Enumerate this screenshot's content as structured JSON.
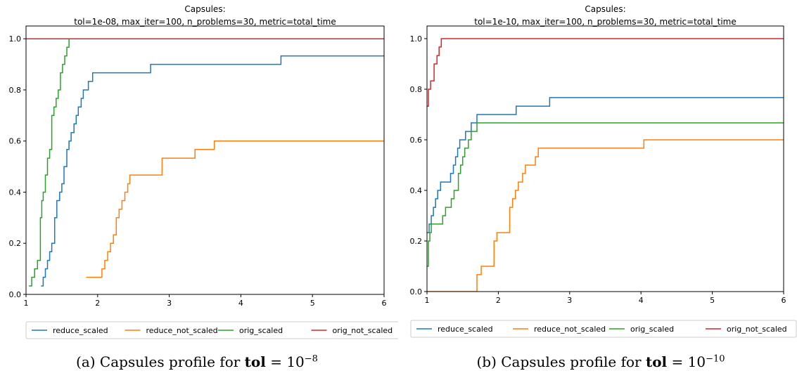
{
  "chart_data": [
    {
      "type": "line",
      "title": "Capsules:\ntol=1e-08, max_iter=100, n_problems=30, metric=total_time",
      "xlabel": "",
      "ylabel": "",
      "xlim": [
        1,
        6
      ],
      "ylim": [
        0,
        1.05
      ],
      "xticks": [
        1,
        2,
        3,
        4,
        5,
        6
      ],
      "yticks": [
        0.0,
        0.2,
        0.4,
        0.6,
        0.8,
        1.0
      ],
      "grid": false,
      "legend_position": "bottom",
      "series": [
        {
          "name": "reduce_scaled",
          "color": "#1f77b4",
          "x": [
            1.21,
            1.24,
            1.27,
            1.3,
            1.33,
            1.36,
            1.4,
            1.43,
            1.47,
            1.5,
            1.53,
            1.57,
            1.6,
            1.63,
            1.67,
            1.7,
            1.73,
            1.77,
            1.8,
            1.83,
            1.87,
            1.9,
            1.93,
            1.97,
            2.74,
            4.56,
            6.0
          ],
          "y": [
            0.033,
            0.067,
            0.1,
            0.133,
            0.167,
            0.2,
            0.3,
            0.367,
            0.4,
            0.433,
            0.5,
            0.567,
            0.6,
            0.633,
            0.667,
            0.7,
            0.733,
            0.767,
            0.8,
            0.8,
            0.833,
            0.833,
            0.867,
            0.867,
            0.9,
            0.933,
            0.933
          ]
        },
        {
          "name": "reduce_not_scaled",
          "color": "#ff7f0e",
          "x": [
            1.84,
            2.06,
            2.1,
            2.14,
            2.18,
            2.22,
            2.26,
            2.3,
            2.34,
            2.38,
            2.42,
            2.45,
            2.48,
            2.9,
            3.36,
            3.63,
            6.0
          ],
          "y": [
            0.067,
            0.1,
            0.133,
            0.167,
            0.2,
            0.233,
            0.3,
            0.333,
            0.367,
            0.4,
            0.433,
            0.467,
            0.467,
            0.533,
            0.567,
            0.6,
            0.6
          ]
        },
        {
          "name": "orig_scaled",
          "color": "#2ca02c",
          "x": [
            1.04,
            1.08,
            1.12,
            1.16,
            1.2,
            1.22,
            1.24,
            1.27,
            1.3,
            1.33,
            1.36,
            1.39,
            1.42,
            1.45,
            1.48,
            1.51,
            1.54,
            1.57,
            1.6,
            6.0
          ],
          "y": [
            0.033,
            0.067,
            0.1,
            0.133,
            0.3,
            0.367,
            0.4,
            0.467,
            0.533,
            0.567,
            0.7,
            0.733,
            0.767,
            0.8,
            0.867,
            0.9,
            0.933,
            0.967,
            1.0,
            1.0
          ]
        },
        {
          "name": "orig_not_scaled",
          "color": "#d62728",
          "x": [
            1,
            6
          ],
          "y": [
            1.0,
            1.0
          ]
        }
      ]
    },
    {
      "type": "line",
      "title": "Capsules:\ntol=1e-10, max_iter=100, n_problems=30, metric=total_time",
      "xlabel": "",
      "ylabel": "",
      "xlim": [
        1,
        6
      ],
      "ylim": [
        0,
        1.05
      ],
      "xticks": [
        1,
        2,
        3,
        4,
        5,
        6
      ],
      "yticks": [
        0.0,
        0.2,
        0.4,
        0.6,
        0.8,
        1.0
      ],
      "grid": false,
      "legend_position": "bottom",
      "series": [
        {
          "name": "reduce_scaled",
          "color": "#1f77b4",
          "x": [
            1.0,
            1.03,
            1.06,
            1.09,
            1.12,
            1.15,
            1.19,
            1.33,
            1.37,
            1.4,
            1.43,
            1.46,
            1.5,
            1.54,
            1.58,
            1.62,
            1.66,
            1.7,
            2.25,
            2.72,
            6.0
          ],
          "y": [
            0.233,
            0.267,
            0.3,
            0.333,
            0.367,
            0.4,
            0.433,
            0.467,
            0.5,
            0.533,
            0.567,
            0.6,
            0.6,
            0.633,
            0.633,
            0.667,
            0.667,
            0.7,
            0.733,
            0.767,
            0.767
          ]
        },
        {
          "name": "reduce_not_scaled",
          "color": "#ff7f0e",
          "x": [
            1.0,
            1.7,
            1.76,
            1.82,
            1.94,
            1.98,
            2.02,
            2.16,
            2.2,
            2.24,
            2.28,
            2.34,
            2.38,
            2.45,
            2.52,
            2.56,
            2.6,
            4.04,
            6.0
          ],
          "y": [
            0.0,
            0.067,
            0.1,
            0.1,
            0.2,
            0.233,
            0.233,
            0.333,
            0.367,
            0.4,
            0.433,
            0.467,
            0.5,
            0.5,
            0.533,
            0.567,
            0.567,
            0.6,
            0.6
          ]
        },
        {
          "name": "orig_scaled",
          "color": "#2ca02c",
          "x": [
            1.0,
            1.02,
            1.04,
            1.06,
            1.09,
            1.22,
            1.26,
            1.34,
            1.38,
            1.44,
            1.47,
            1.5,
            1.53,
            1.58,
            1.62,
            1.66,
            1.7,
            1.74,
            6.0
          ],
          "y": [
            0.1,
            0.2,
            0.233,
            0.267,
            0.267,
            0.3,
            0.333,
            0.367,
            0.4,
            0.467,
            0.5,
            0.533,
            0.567,
            0.6,
            0.633,
            0.633,
            0.667,
            0.667,
            0.667
          ]
        },
        {
          "name": "orig_not_scaled",
          "color": "#d62728",
          "x": [
            1.0,
            1.02,
            1.05,
            1.1,
            1.14,
            1.17,
            1.2,
            6.0
          ],
          "y": [
            0.733,
            0.8,
            0.833,
            0.9,
            0.933,
            0.967,
            1.0,
            1.0
          ]
        }
      ]
    }
  ],
  "captions": [
    {
      "prefix": "(a) Capsules profile for ",
      "bold": "tol",
      "eq": " = 10",
      "exp": "−8"
    },
    {
      "prefix": "(b) Capsules profile for ",
      "bold": "tol",
      "eq": " = 10",
      "exp": "−10"
    }
  ]
}
